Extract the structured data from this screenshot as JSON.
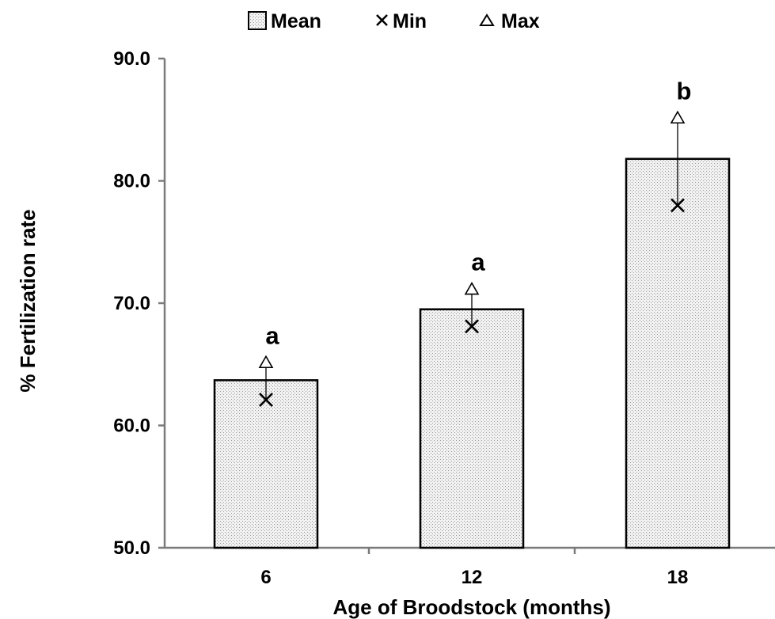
{
  "chart_data": {
    "type": "bar",
    "xlabel": "Age of Broodstock (months)",
    "ylabel": "% Fertilization rate",
    "categories": [
      "6",
      "12",
      "18"
    ],
    "ylim": [
      50.0,
      90.0
    ],
    "yticks": [
      "50.0",
      "60.0",
      "70.0",
      "80.0",
      "90.0"
    ],
    "legend": {
      "position": "top-center",
      "entries": [
        {
          "symbol": "box",
          "label": "Mean"
        },
        {
          "symbol": "cross",
          "label": "Min"
        },
        {
          "symbol": "triangle",
          "label": "Max"
        }
      ]
    },
    "series": [
      {
        "name": "Mean",
        "values": [
          63.7,
          69.5,
          81.8
        ]
      },
      {
        "name": "Min",
        "values": [
          62.1,
          68.1,
          78.0
        ]
      },
      {
        "name": "Max",
        "values": [
          65.0,
          71.0,
          85.0
        ]
      }
    ],
    "annotations": [
      "a",
      "a",
      "b"
    ],
    "grid": false,
    "bar_fill": "#e6e6e6",
    "bar_stroke": "#000000"
  }
}
